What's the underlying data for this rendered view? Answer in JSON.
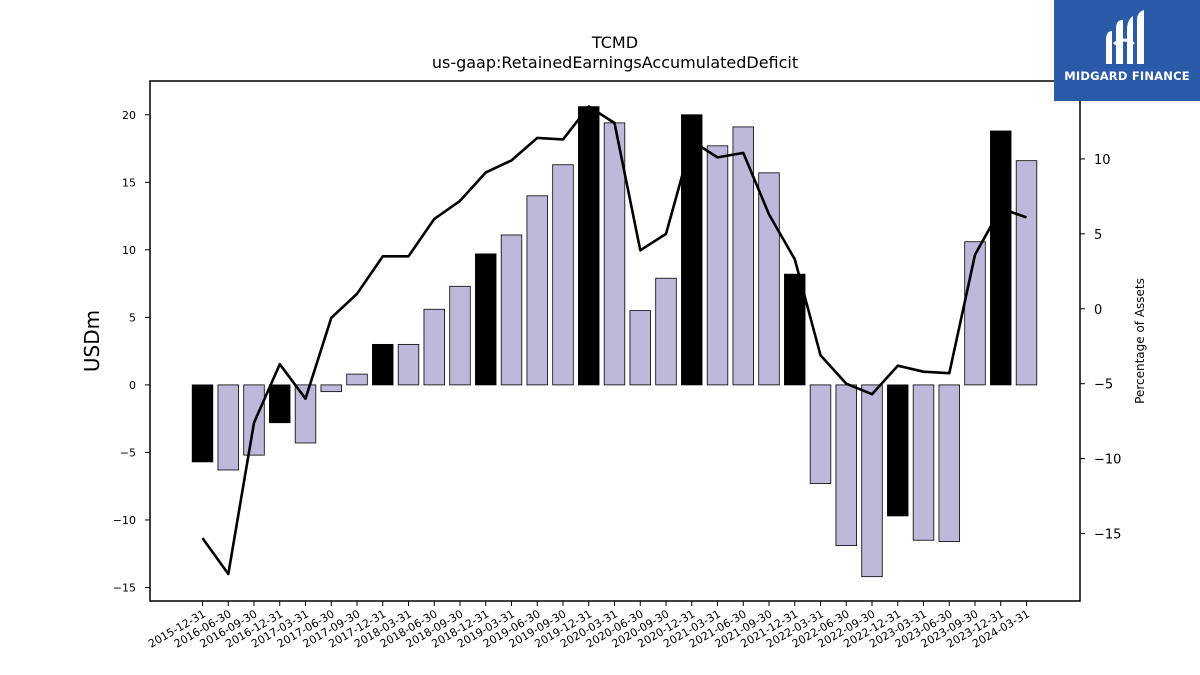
{
  "logo": {
    "text": "MIDGARD FINANCE",
    "icon": "mf-logo-icon",
    "background": "#2a5aa8"
  },
  "chart_data": {
    "type": "bar",
    "title": "TCMD",
    "subtitle": "us-gaap:RetainedEarningsAccumulatedDeficit",
    "ylabel": "USDm",
    "y2label": "Percentage of Assets",
    "ylim": [
      -16,
      22.5
    ],
    "y2lim": [
      -19.5,
      15.2
    ],
    "yticks": [
      -15,
      -10,
      -5,
      0,
      5,
      10,
      15,
      20
    ],
    "y2ticks": [
      -15,
      -10,
      -5,
      0,
      5,
      10
    ],
    "grid": false,
    "categories": [
      "2015-12-31",
      "2016-06-30",
      "2016-09-30",
      "2016-12-31",
      "2017-03-31",
      "2017-06-30",
      "2017-09-30",
      "2017-12-31",
      "2018-03-31",
      "2018-06-30",
      "2018-09-30",
      "2018-12-31",
      "2019-03-31",
      "2019-06-30",
      "2019-09-30",
      "2019-12-31",
      "2020-03-31",
      "2020-06-30",
      "2020-09-30",
      "2020-12-31",
      "2021-03-31",
      "2021-06-30",
      "2021-09-30",
      "2021-12-31",
      "2022-03-31",
      "2022-06-30",
      "2022-09-30",
      "2022-12-31",
      "2023-03-31",
      "2023-06-30",
      "2023-09-30",
      "2023-12-31",
      "2024-03-31"
    ],
    "series": [
      {
        "type": "bar",
        "axis": "left",
        "values": [
          -5.7,
          -6.3,
          -5.2,
          -2.8,
          -4.3,
          -0.5,
          0.8,
          3.0,
          3.0,
          5.6,
          7.3,
          9.7,
          11.1,
          14.0,
          16.3,
          20.6,
          19.4,
          5.5,
          7.9,
          20.0,
          17.7,
          19.1,
          15.7,
          8.2,
          -7.3,
          -11.9,
          -14.2,
          -9.7,
          -11.5,
          -11.6,
          10.6,
          18.8,
          16.6
        ]
      },
      {
        "type": "line",
        "axis": "right",
        "values": [
          -15.3,
          -17.7,
          -7.6,
          -3.7,
          -6.0,
          -0.6,
          1.0,
          3.5,
          3.5,
          6.0,
          7.2,
          9.1,
          9.9,
          11.4,
          11.3,
          13.5,
          12.4,
          3.9,
          5.0,
          11.2,
          10.1,
          10.4,
          6.3,
          3.3,
          -3.1,
          -5.0,
          -5.7,
          -3.8,
          -4.2,
          -4.3,
          3.6,
          6.7,
          6.1
        ]
      }
    ],
    "colors": {
      "bar": "#bcb9da",
      "bar_highlight": "#000000",
      "line": "#000000"
    },
    "highlight_categories": [
      "2015-12-31",
      "2016-12-31",
      "2017-12-31",
      "2018-12-31",
      "2019-12-31",
      "2020-12-31",
      "2021-12-31",
      "2022-12-31",
      "2023-12-31"
    ]
  }
}
